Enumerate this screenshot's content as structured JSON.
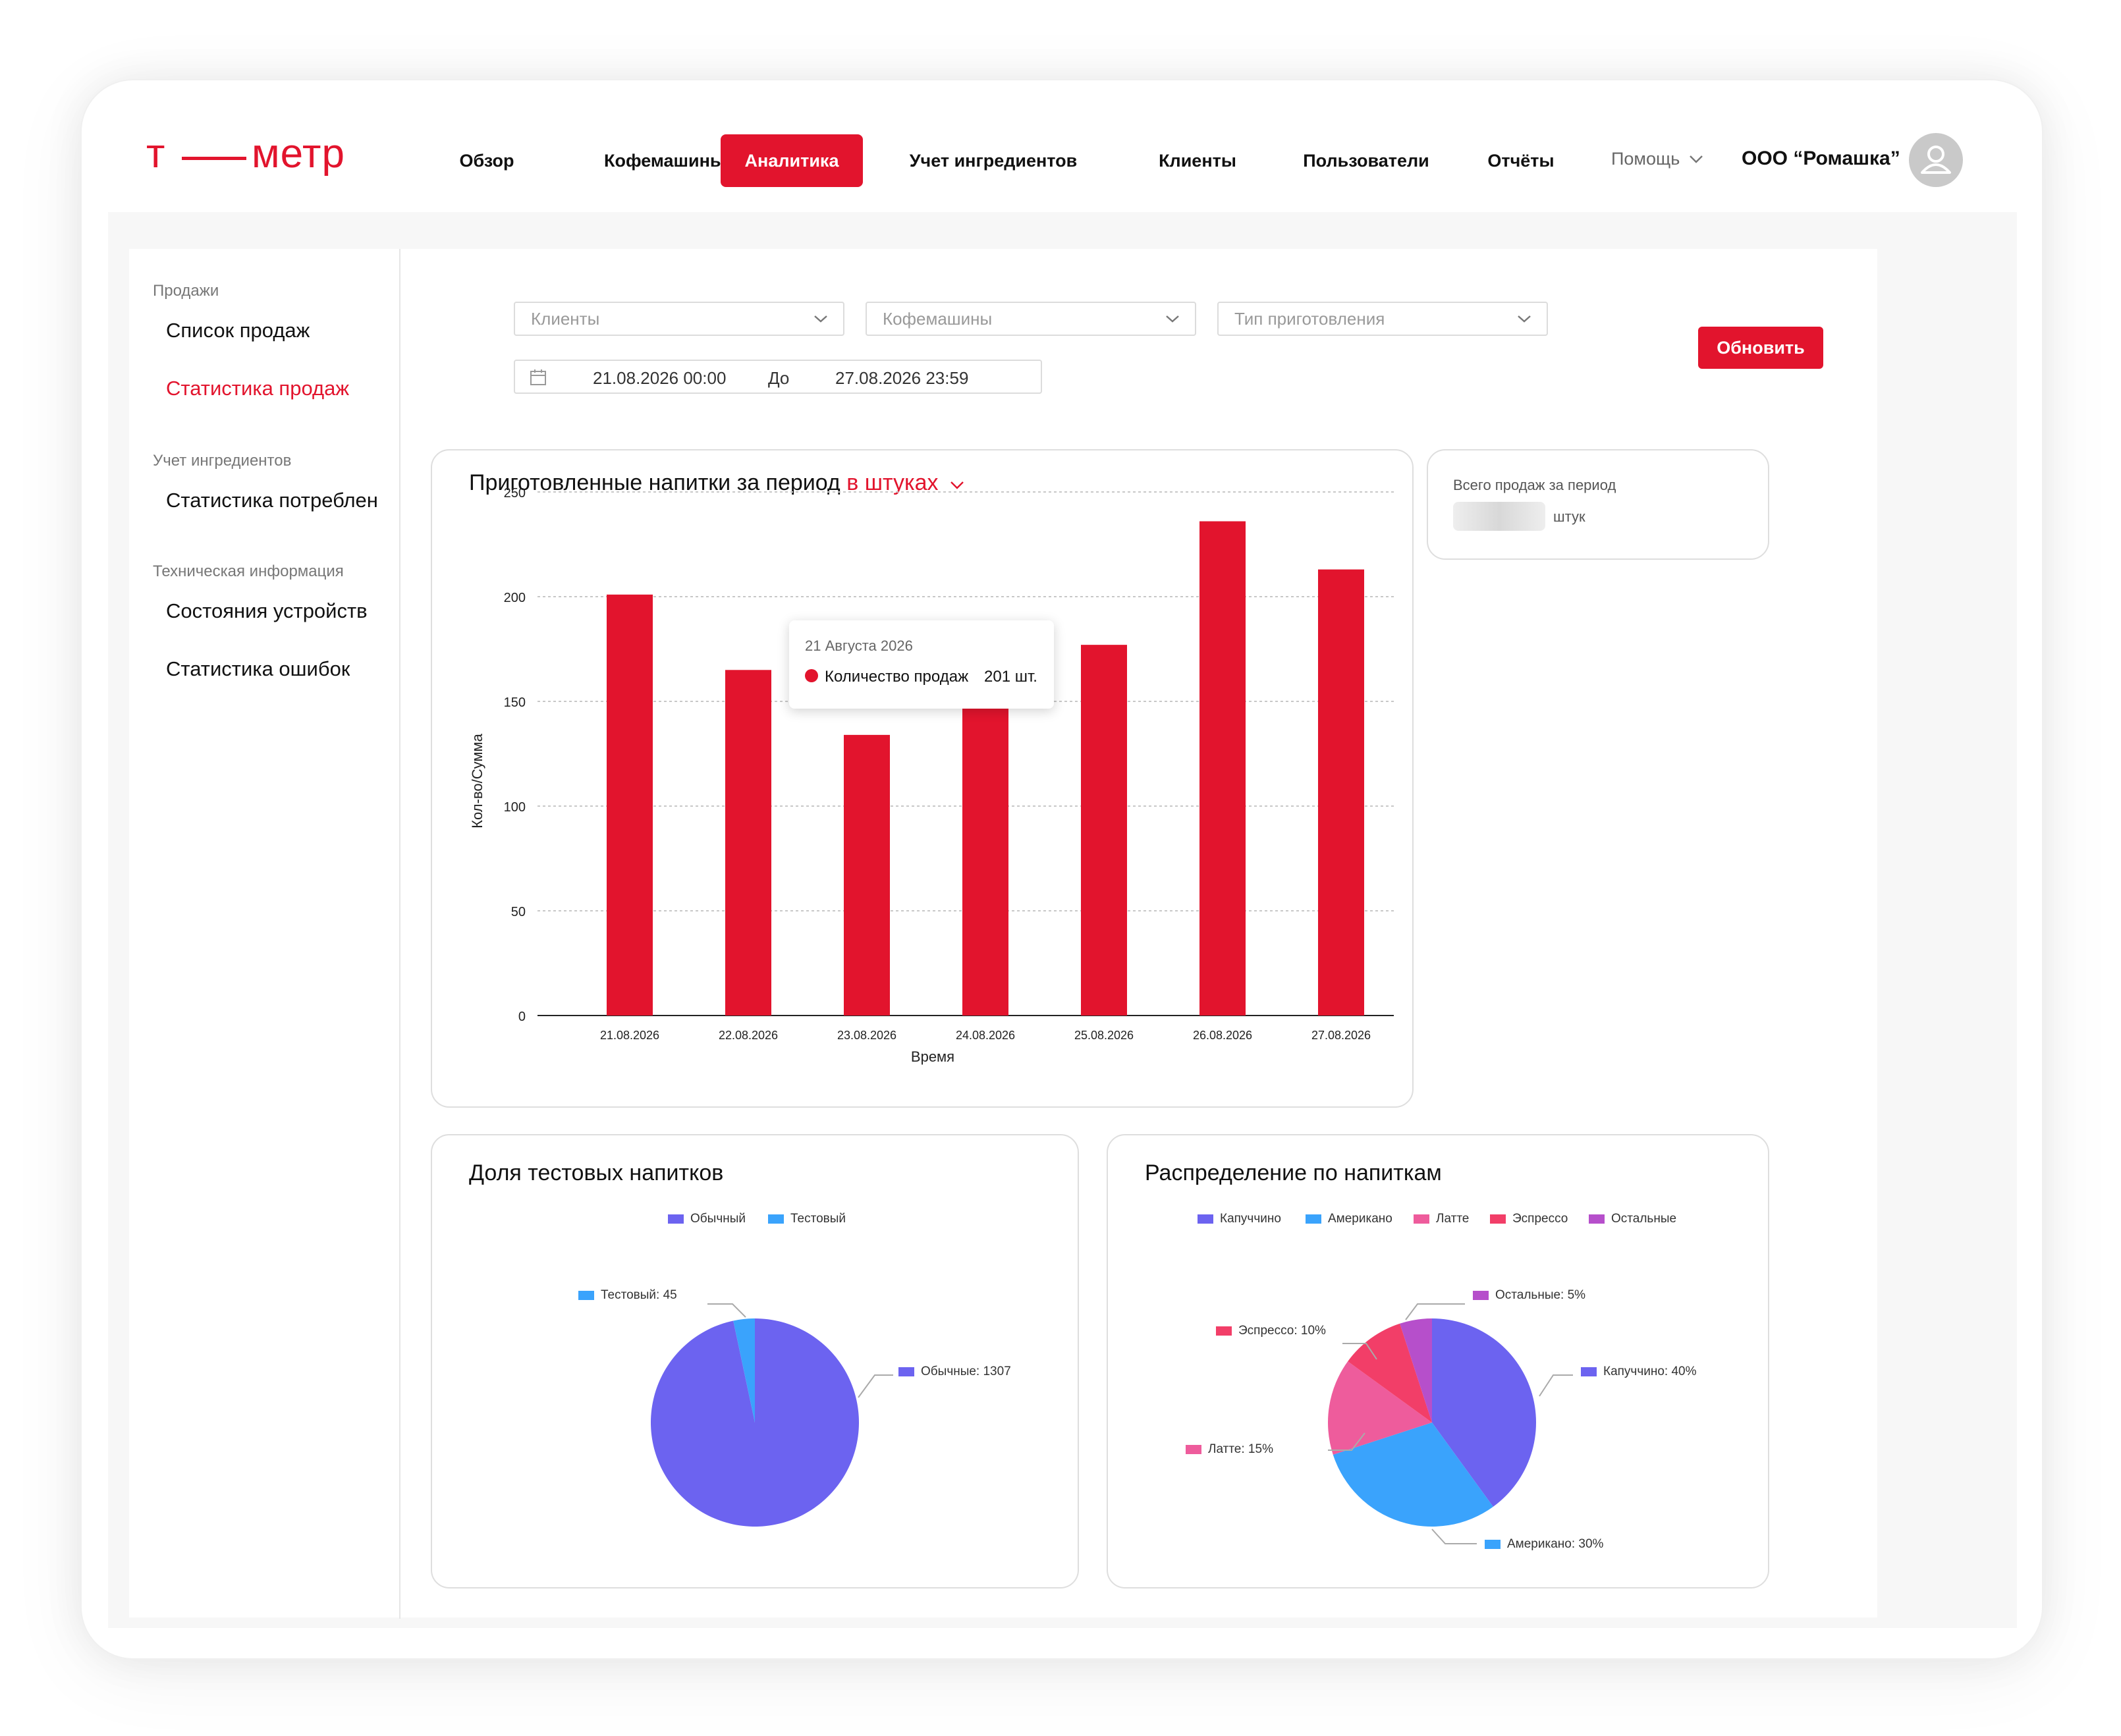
{
  "header": {
    "logo": {
      "t": "т",
      "word": "метр"
    },
    "nav": [
      {
        "label": "Обзор"
      },
      {
        "label": "Кофемашины"
      },
      {
        "label": "Аналитика",
        "active": true
      },
      {
        "label": "Учет ингредиентов"
      },
      {
        "label": "Клиенты"
      },
      {
        "label": "Пользователи"
      },
      {
        "label": "Отчёты"
      }
    ],
    "help": "Помощь",
    "company": "ООО “Ромашка”"
  },
  "sidebar": {
    "sections": [
      {
        "title": "Продажи",
        "items": [
          {
            "label": "Список продаж"
          },
          {
            "label": "Статистика продаж",
            "active": true
          }
        ]
      },
      {
        "title": "Учет ингредиентов",
        "items": [
          {
            "label": "Статистика потребления"
          }
        ]
      },
      {
        "title": "Техническая информация",
        "items": [
          {
            "label": "Состояния устройств"
          },
          {
            "label": "Статистика ошибок"
          }
        ]
      }
    ]
  },
  "filters": {
    "clients_placeholder": "Клиенты",
    "machines_placeholder": "Кофемашины",
    "type_placeholder": "Тип приготовления",
    "date_from": "21.08.2026 00:00",
    "date_to_label": "До",
    "date_to": "27.08.2026 23:59",
    "refresh": "Обновить"
  },
  "bar_card": {
    "title": "Приготовленные напитки за период",
    "unit_selector": "в штуках"
  },
  "total_card": {
    "title": "Всего продаж за период",
    "unit": "штук"
  },
  "tooltip": {
    "date": "21 Августа 2026",
    "series": "Количество продаж",
    "value": "201 шт."
  },
  "test_card": {
    "title": "Доля тестовых напитков"
  },
  "drinks_card": {
    "title": "Распределение по напиткам"
  },
  "colors": {
    "accent": "#e2142d",
    "purple": "#6c63f0",
    "blue": "#3aa3fc",
    "pink": "#ee5c9c",
    "rose": "#f23e68",
    "violet": "#b64fcb"
  },
  "chart_data": [
    {
      "type": "bar",
      "title": "Приготовленные напитки за период в штуках",
      "xlabel": "Время",
      "ylabel": "Кол-во/Сумма",
      "ylim": [
        0,
        250
      ],
      "yticks": [
        0,
        50,
        100,
        150,
        200,
        250
      ],
      "grid": true,
      "categories": [
        "21.08.2026",
        "22.08.2026",
        "23.08.2026",
        "24.08.2026",
        "25.08.2026",
        "26.08.2026",
        "27.08.2026"
      ],
      "series": [
        {
          "name": "Количество продаж",
          "color": "#e2142d",
          "values": [
            201,
            165,
            134,
            147,
            177,
            236,
            213
          ]
        }
      ]
    },
    {
      "type": "pie",
      "title": "Доля тестовых напитков",
      "legend": [
        "Обычный",
        "Тестовый"
      ],
      "legend_position": "top",
      "slices": [
        {
          "label": "Обычные: 1307",
          "value": 1307,
          "color": "#6c63f0"
        },
        {
          "label": "Тестовый: 45",
          "value": 45,
          "color": "#3aa3fc"
        }
      ]
    },
    {
      "type": "pie",
      "title": "Распределение по напиткам",
      "legend": [
        "Капуччино",
        "Американо",
        "Латте",
        "Эспрессо",
        "Остальные"
      ],
      "legend_position": "top",
      "slices": [
        {
          "label": "Капуччино: 40%",
          "value": 40,
          "color": "#6c63f0"
        },
        {
          "label": "Американо: 30%",
          "value": 30,
          "color": "#3aa3fc"
        },
        {
          "label": "Латте: 15%",
          "value": 15,
          "color": "#ee5c9c"
        },
        {
          "label": "Эспрессо: 10%",
          "value": 10,
          "color": "#f23e68"
        },
        {
          "label": "Остальные: 5%",
          "value": 5,
          "color": "#b64fcb"
        }
      ]
    }
  ]
}
